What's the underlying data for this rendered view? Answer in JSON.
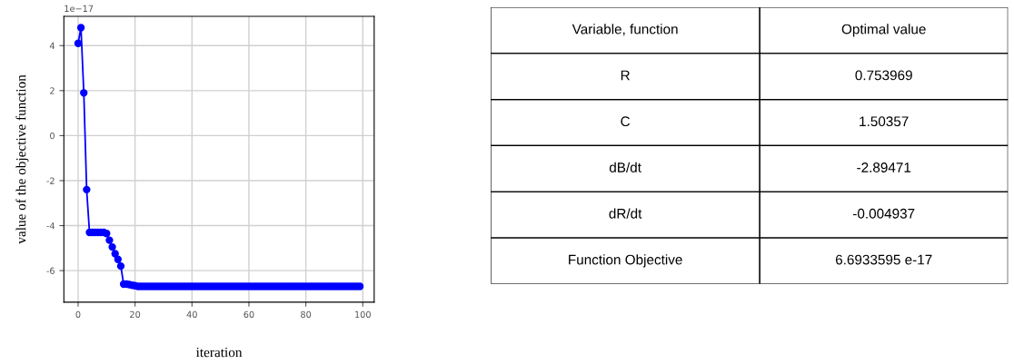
{
  "chart_data": [
    {
      "type": "line",
      "xlabel": "iteration",
      "ylabel": "value of the objective function",
      "annotations": [
        "1e−17"
      ],
      "xlim": [
        -5,
        104
      ],
      "ylim": [
        -7.4,
        5.3
      ],
      "xticks": [
        0,
        20,
        40,
        60,
        80,
        100
      ],
      "yticks": [
        -6,
        -4,
        -2,
        0,
        2,
        4
      ],
      "grid": true,
      "marker": "circle",
      "line_style": "solid",
      "series": [
        {
          "color": "#0000ff",
          "x": [
            0,
            1,
            2,
            3,
            4,
            5,
            6,
            7,
            8,
            9,
            10,
            11,
            12,
            13,
            14,
            15,
            16,
            17,
            18,
            19,
            20,
            21,
            22,
            23,
            24,
            25,
            26,
            27,
            28,
            29,
            30,
            31,
            32,
            33,
            34,
            35,
            36,
            37,
            38,
            39,
            40,
            41,
            42,
            43,
            44,
            45,
            46,
            47,
            48,
            49,
            50,
            51,
            52,
            53,
            54,
            55,
            56,
            57,
            58,
            59,
            60,
            61,
            62,
            63,
            64,
            65,
            66,
            67,
            68,
            69,
            70,
            71,
            72,
            73,
            74,
            75,
            76,
            77,
            78,
            79,
            80,
            81,
            82,
            83,
            84,
            85,
            86,
            87,
            88,
            89,
            90,
            91,
            92,
            93,
            94,
            95,
            96,
            97,
            98,
            99
          ],
          "values": [
            4.1,
            4.8,
            1.9,
            -2.4,
            -4.3,
            -4.3,
            -4.3,
            -4.3,
            -4.3,
            -4.3,
            -4.35,
            -4.65,
            -4.95,
            -5.25,
            -5.5,
            -5.8,
            -6.6,
            -6.6,
            -6.62,
            -6.65,
            -6.67,
            -6.7,
            -6.7,
            -6.7,
            -6.7,
            -6.7,
            -6.7,
            -6.7,
            -6.7,
            -6.7,
            -6.7,
            -6.7,
            -6.7,
            -6.7,
            -6.7,
            -6.7,
            -6.7,
            -6.7,
            -6.7,
            -6.7,
            -6.7,
            -6.7,
            -6.7,
            -6.7,
            -6.7,
            -6.7,
            -6.7,
            -6.7,
            -6.7,
            -6.7,
            -6.7,
            -6.7,
            -6.7,
            -6.7,
            -6.7,
            -6.7,
            -6.7,
            -6.7,
            -6.7,
            -6.7,
            -6.7,
            -6.7,
            -6.7,
            -6.7,
            -6.7,
            -6.7,
            -6.7,
            -6.7,
            -6.7,
            -6.7,
            -6.7,
            -6.7,
            -6.7,
            -6.7,
            -6.7,
            -6.7,
            -6.7,
            -6.7,
            -6.7,
            -6.7,
            -6.7,
            -6.7,
            -6.7,
            -6.7,
            -6.7,
            -6.7,
            -6.7,
            -6.7,
            -6.7,
            -6.7,
            -6.7,
            -6.7,
            -6.7,
            -6.7,
            -6.7,
            -6.7,
            -6.7,
            -6.7,
            -6.7,
            -6.7
          ]
        }
      ]
    },
    {
      "type": "other",
      "annotations": [
        "Variable, function",
        "Optimal value",
        "R",
        "0.753969",
        "C",
        "1.50357",
        "dB/dt",
        "-2.89471",
        "dR/dt",
        "-0.004937",
        "Function Objective",
        "6.6933595 e-17"
      ]
    }
  ]
}
